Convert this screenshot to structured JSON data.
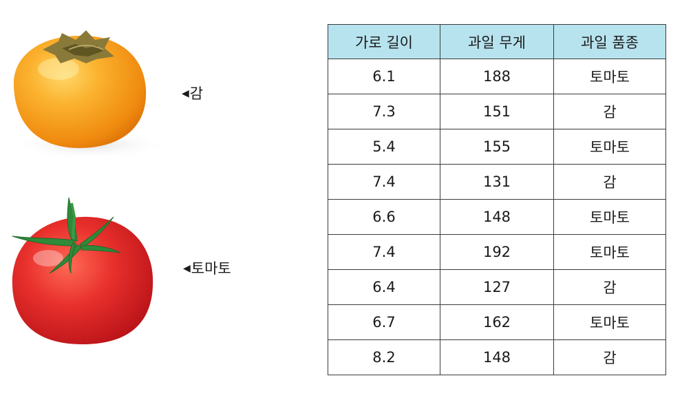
{
  "labels": {
    "persimmon": "감",
    "tomato": "토마토",
    "arrow": "◀"
  },
  "table": {
    "headers": [
      "가로 길이",
      "과일 무게",
      "과일 품종"
    ],
    "rows": [
      [
        "6.1",
        "188",
        "토마토"
      ],
      [
        "7.3",
        "151",
        "감"
      ],
      [
        "5.4",
        "155",
        "토마토"
      ],
      [
        "7.4",
        "131",
        "감"
      ],
      [
        "6.6",
        "148",
        "토마토"
      ],
      [
        "7.4",
        "192",
        "토마토"
      ],
      [
        "6.4",
        "127",
        "감"
      ],
      [
        "6.7",
        "162",
        "토마토"
      ],
      [
        "8.2",
        "148",
        "감"
      ]
    ]
  },
  "colors": {
    "header_bg": "#b7e3ee",
    "persimmon": "#f7a21c",
    "tomato": "#e0262b"
  }
}
